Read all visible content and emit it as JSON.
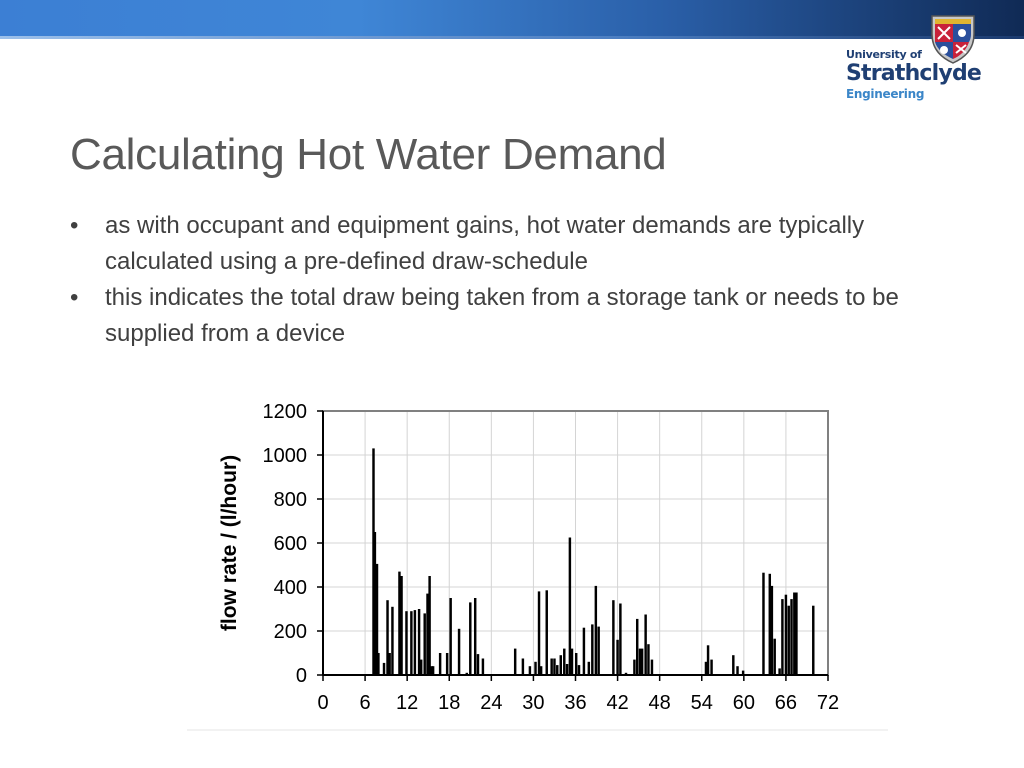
{
  "slide": {
    "title": "Calculating Hot Water Demand",
    "bullets": [
      "as with occupant and equipment gains, hot water demands are typically calculated using a pre-defined draw-schedule",
      "this indicates the total draw being taken from a storage tank or needs to be supplied from a device"
    ],
    "bullet_glyph": "•"
  },
  "logo": {
    "line1": "University of",
    "line2": "Strathclyde",
    "line3": "Engineering"
  },
  "colors": {
    "banner_light": "#3f86d6",
    "banner_dark": "#102a55",
    "logo_navy": "#1f3f73",
    "logo_blue": "#3b86c8",
    "title_gray": "#595959",
    "bar": "#000000",
    "grid": "#d4d4d4",
    "frame": "#808080"
  },
  "chart_data": {
    "type": "bar",
    "title": "",
    "xlabel": "",
    "ylabel": "flow rate / (l/hour)",
    "xlim": [
      0,
      72
    ],
    "ylim": [
      0,
      1200
    ],
    "xticks": [
      0,
      6,
      12,
      18,
      24,
      30,
      36,
      42,
      48,
      54,
      60,
      66,
      72
    ],
    "yticks": [
      0,
      200,
      400,
      600,
      800,
      1000,
      1200
    ],
    "grid": true,
    "series": [
      {
        "x": [
          7.2,
          7.4,
          7.7,
          7.9,
          8.7,
          9.2,
          9.5,
          9.9,
          10.9,
          11.2,
          11.9,
          12.6,
          13.1,
          13.7,
          14.0,
          14.5,
          14.9,
          15.2,
          15.5,
          15.7,
          16.7,
          17.7,
          18.2,
          19.4,
          20.5,
          21.0,
          21.7,
          22.1,
          22.8,
          27.4,
          28.5,
          29.5,
          30.3,
          30.8,
          31.1,
          31.9,
          32.6,
          33.0,
          33.4,
          33.9,
          34.4,
          34.8,
          35.2,
          35.5,
          36.1,
          36.5,
          37.2,
          37.9,
          38.4,
          38.9,
          39.3,
          41.4,
          42.0,
          42.4,
          43.2,
          44.4,
          44.8,
          45.2,
          45.5,
          46.0,
          46.4,
          46.9,
          54.6,
          54.9,
          55.4,
          58.5,
          59.1,
          59.9,
          62.8,
          63.7,
          64.0,
          64.4,
          65.1,
          65.5,
          66.0,
          66.4,
          66.8,
          67.2,
          67.5,
          69.9
        ],
        "y": [
          1030,
          650,
          505,
          100,
          55,
          340,
          100,
          310,
          470,
          450,
          290,
          290,
          295,
          300,
          70,
          280,
          370,
          450,
          40,
          40,
          100,
          100,
          350,
          210,
          10,
          330,
          350,
          95,
          75,
          120,
          75,
          40,
          60,
          380,
          40,
          385,
          75,
          75,
          45,
          90,
          120,
          50,
          625,
          120,
          100,
          45,
          215,
          60,
          230,
          405,
          220,
          340,
          160,
          325,
          10,
          70,
          255,
          120,
          120,
          275,
          140,
          70,
          60,
          135,
          70,
          90,
          40,
          20,
          465,
          460,
          405,
          165,
          30,
          345,
          365,
          315,
          345,
          375,
          375,
          315
        ],
        "width": 0.35
      }
    ]
  }
}
